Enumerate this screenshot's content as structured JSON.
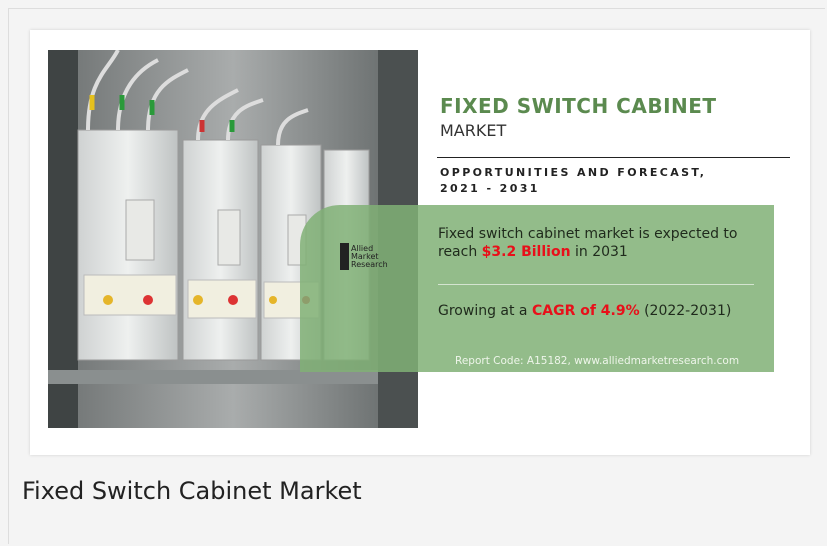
{
  "infographic": {
    "title": "FIXED SWITCH CABINET",
    "subtitle": "MARKET",
    "forecast_line1": "OPPORTUNITIES AND FORECAST,",
    "forecast_line2": "2021 - 2031",
    "logo": [
      "Allied",
      "Market",
      "Research"
    ],
    "stat1": {
      "before": "Fixed switch cabinet market is expected to reach ",
      "highlight": "$3.2 Billion",
      "after": " in 2031"
    },
    "stat2": {
      "before": "Growing at a ",
      "highlight": "CAGR of 4.9%",
      "after": " (2022-2031)"
    },
    "report_code": "Report Code: A15182, www.alliedmarketresearch.com"
  },
  "caption": "Fixed Switch Cabinet Market"
}
